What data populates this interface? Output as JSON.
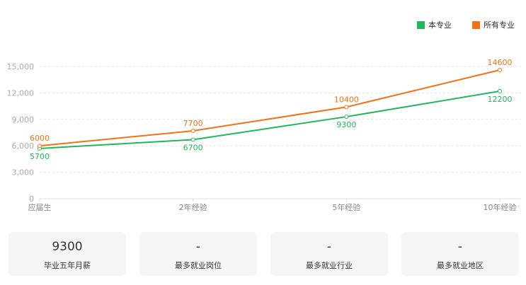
{
  "chart_data": {
    "type": "line",
    "categories": [
      "应届生",
      "2年经验",
      "5年经验",
      "10年经验"
    ],
    "ylim": [
      0,
      15000
    ],
    "yticks": [
      "0",
      "3,000",
      "6,000",
      "9,000",
      "12,000",
      "15,000"
    ],
    "ytick_values": [
      0,
      3000,
      6000,
      9000,
      12000,
      15000
    ],
    "grid": true,
    "legend_position": "top-right",
    "series": [
      {
        "name": "本专业",
        "color": "#1fb85c",
        "values": [
          5700,
          6700,
          9300,
          12200
        ]
      },
      {
        "name": "所有专业",
        "color": "#f47216",
        "values": [
          6000,
          7700,
          10400,
          14600
        ]
      }
    ]
  },
  "cards": [
    {
      "value": "9300",
      "label": "毕业五年月薪"
    },
    {
      "value": "-",
      "label": "最多就业岗位"
    },
    {
      "value": "-",
      "label": "最多就业行业"
    },
    {
      "value": "-",
      "label": "最多就业地区"
    }
  ]
}
